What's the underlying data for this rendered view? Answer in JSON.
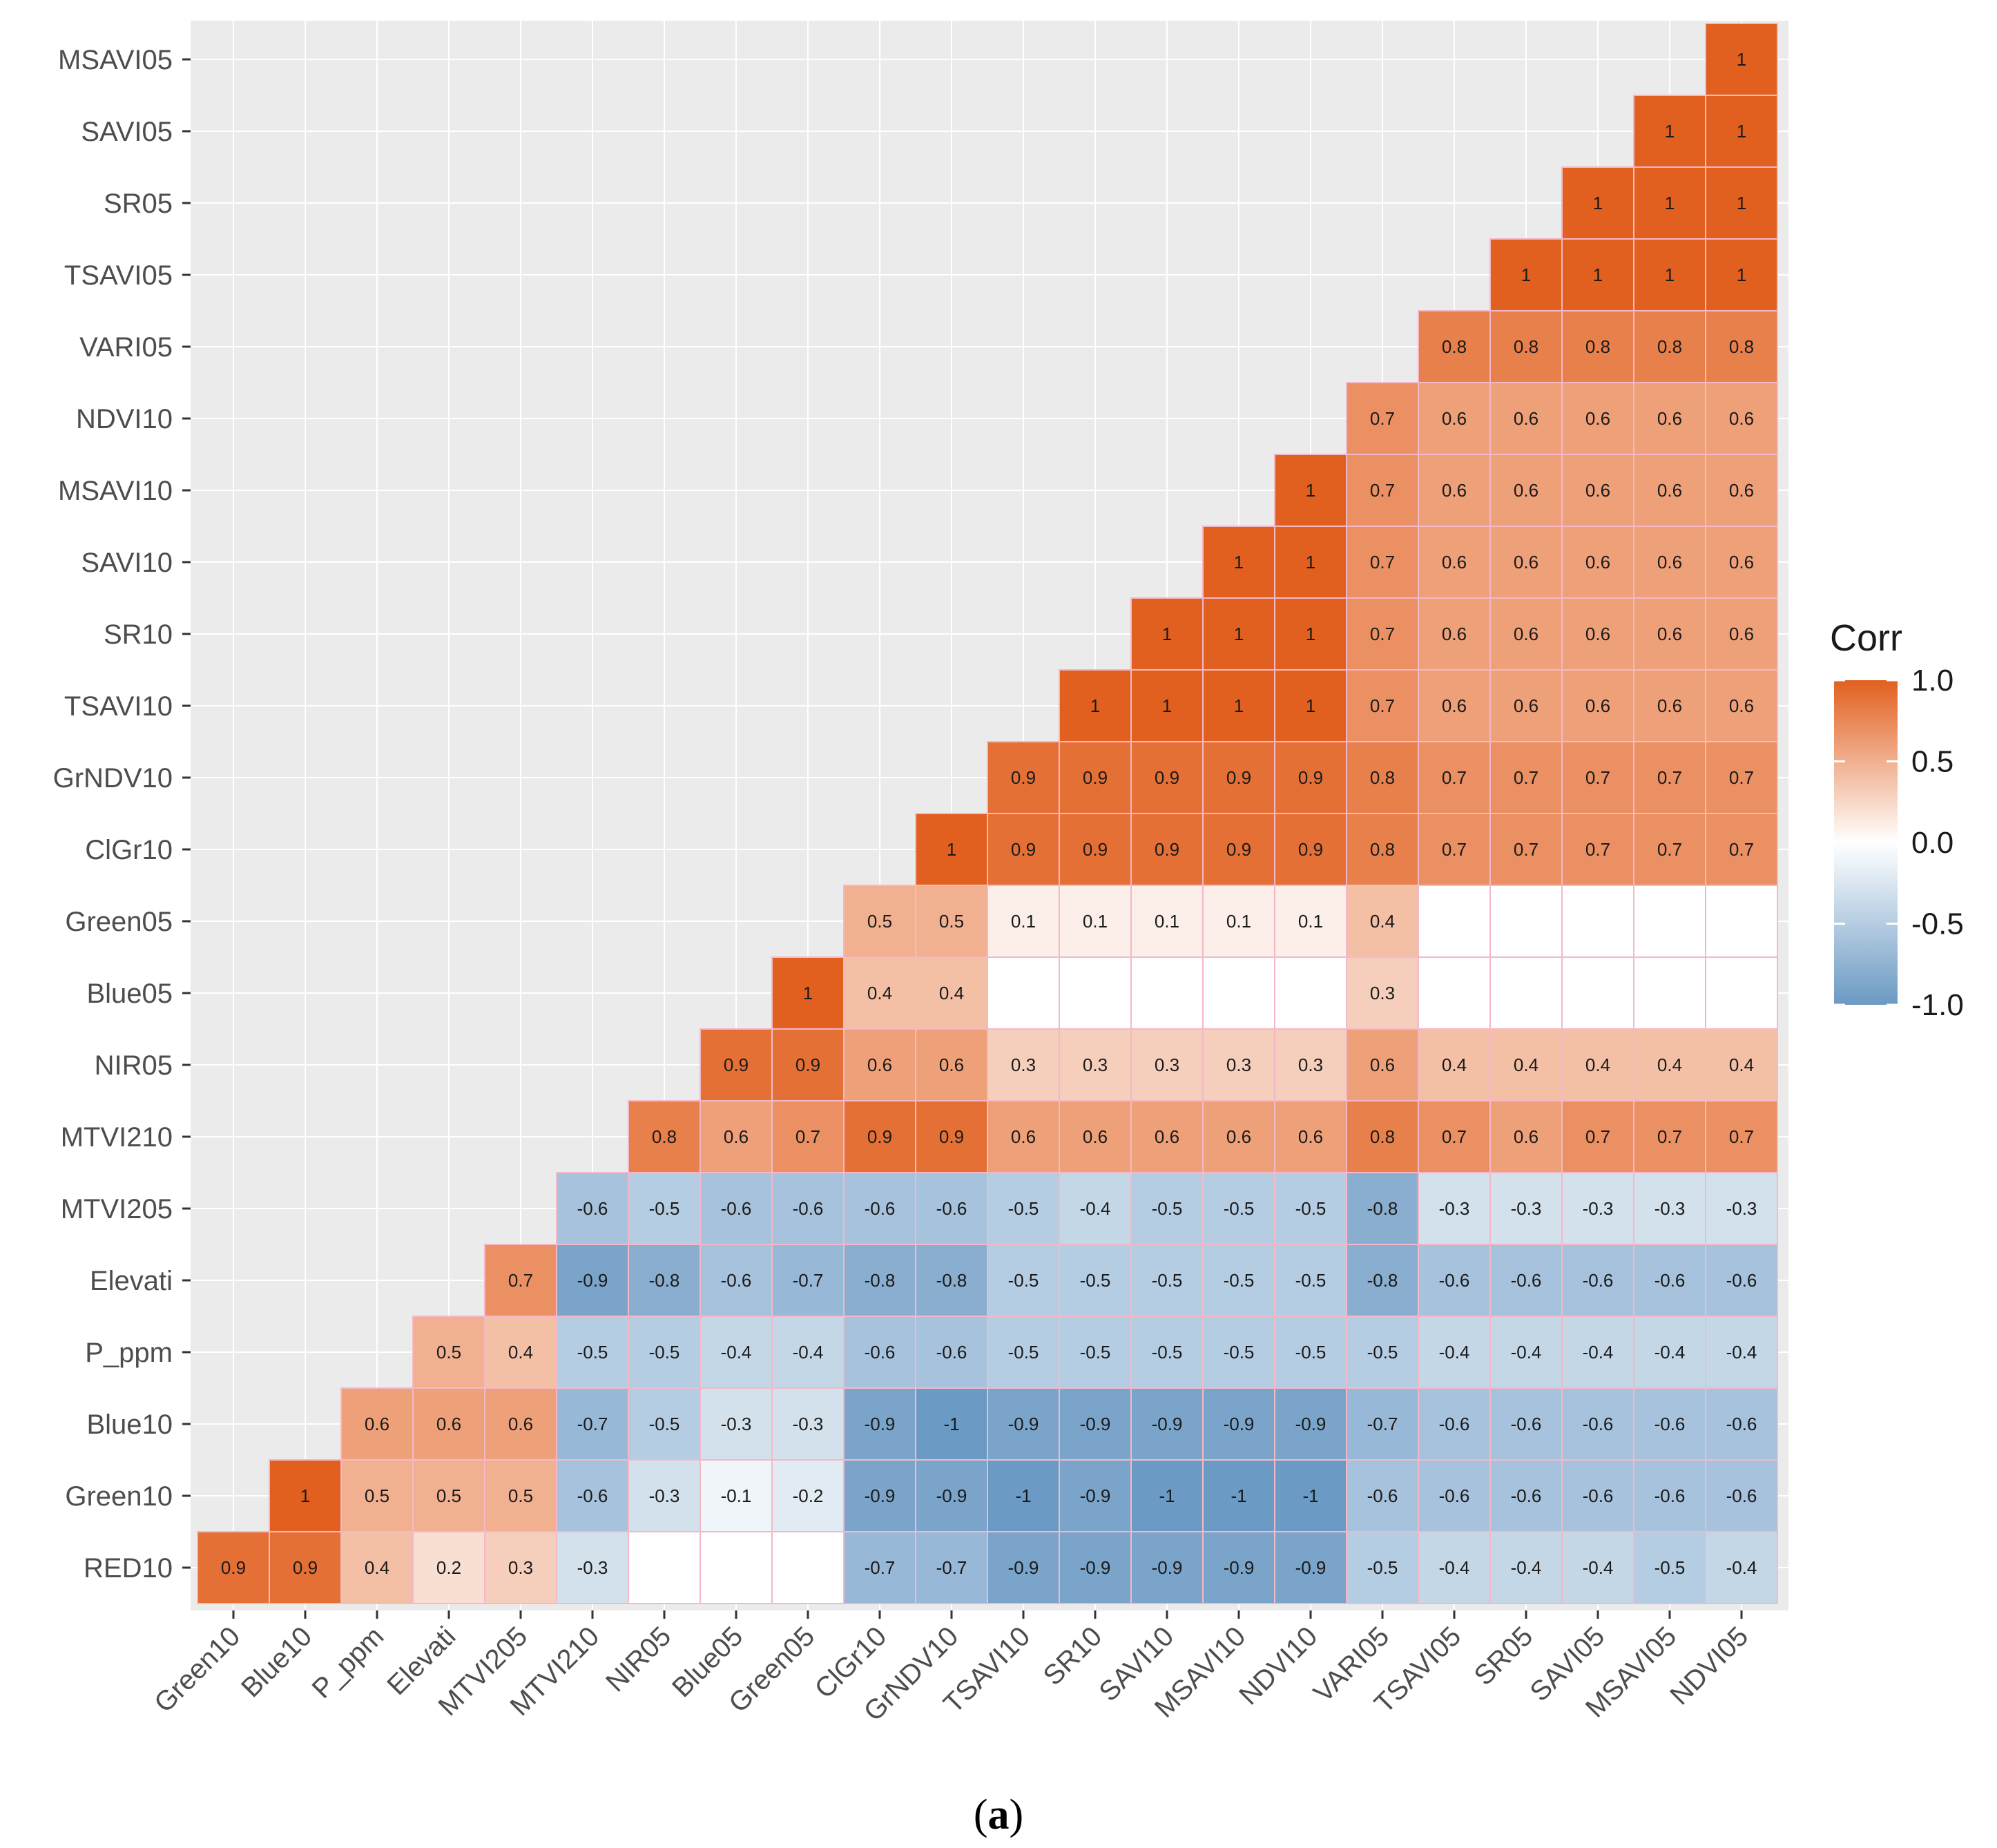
{
  "chart_data": {
    "type": "heatmap",
    "title": "",
    "caption": "(a)",
    "caption_inner": "a",
    "x_categories": [
      "Green10",
      "Blue10",
      "P_ppm",
      "Elevati",
      "MTVI205",
      "MTVI210",
      "NIR05",
      "Blue05",
      "Green05",
      "ClGr10",
      "GrNDV10",
      "TSAVI10",
      "SR10",
      "SAVI10",
      "MSAVI10",
      "NDVI10",
      "VARI05",
      "TSAVI05",
      "SR05",
      "SAVI05",
      "MSAVI05",
      "NDVI05"
    ],
    "y_categories": [
      "RED10",
      "Green10",
      "Blue10",
      "P_ppm",
      "Elevati",
      "MTVI205",
      "MTVI210",
      "NIR05",
      "Blue05",
      "Green05",
      "ClGr10",
      "GrNDV10",
      "TSAVI10",
      "SR10",
      "SAVI10",
      "MSAVI10",
      "NDVI10",
      "VARI05",
      "TSAVI05",
      "SR05",
      "SAVI05",
      "MSAVI05"
    ],
    "values": [
      [
        0.9,
        0.9,
        0.4,
        0.2,
        0.3,
        -0.3,
        0,
        0,
        0,
        -0.7,
        -0.7,
        -0.9,
        -0.9,
        -0.9,
        -0.9,
        -0.9,
        -0.5,
        -0.4,
        -0.4,
        -0.4,
        -0.5,
        -0.4
      ],
      [
        null,
        1,
        0.5,
        0.5,
        0.5,
        -0.6,
        -0.3,
        -0.1,
        -0.2,
        -0.9,
        -0.9,
        -1,
        -0.9,
        -1,
        -1,
        -1,
        -0.6,
        -0.6,
        -0.6,
        -0.6,
        -0.6,
        -0.6
      ],
      [
        null,
        null,
        0.6,
        0.6,
        0.6,
        -0.7,
        -0.5,
        -0.3,
        -0.3,
        -0.9,
        -1,
        -0.9,
        -0.9,
        -0.9,
        -0.9,
        -0.9,
        -0.7,
        -0.6,
        -0.6,
        -0.6,
        -0.6,
        -0.6
      ],
      [
        null,
        null,
        null,
        0.5,
        0.4,
        -0.5,
        -0.5,
        -0.4,
        -0.4,
        -0.6,
        -0.6,
        -0.5,
        -0.5,
        -0.5,
        -0.5,
        -0.5,
        -0.5,
        -0.4,
        -0.4,
        -0.4,
        -0.4,
        -0.4
      ],
      [
        null,
        null,
        null,
        null,
        0.7,
        -0.9,
        -0.8,
        -0.6,
        -0.7,
        -0.8,
        -0.8,
        -0.5,
        -0.5,
        -0.5,
        -0.5,
        -0.5,
        -0.8,
        -0.6,
        -0.6,
        -0.6,
        -0.6,
        -0.6
      ],
      [
        null,
        null,
        null,
        null,
        null,
        -0.6,
        -0.5,
        -0.6,
        -0.6,
        -0.6,
        -0.6,
        -0.5,
        -0.4,
        -0.5,
        -0.5,
        -0.5,
        -0.8,
        -0.3,
        -0.3,
        -0.3,
        -0.3,
        -0.3
      ],
      [
        null,
        null,
        null,
        null,
        null,
        null,
        0.8,
        0.6,
        0.7,
        0.9,
        0.9,
        0.6,
        0.6,
        0.6,
        0.6,
        0.6,
        0.8,
        0.7,
        0.6,
        0.7,
        0.7,
        0.7
      ],
      [
        null,
        null,
        null,
        null,
        null,
        null,
        null,
        0.9,
        0.9,
        0.6,
        0.6,
        0.3,
        0.3,
        0.3,
        0.3,
        0.3,
        0.6,
        0.4,
        0.4,
        0.4,
        0.4,
        0.4
      ],
      [
        null,
        null,
        null,
        null,
        null,
        null,
        null,
        null,
        1,
        0.4,
        0.4,
        0,
        0,
        0,
        0,
        0,
        0.3,
        0,
        0,
        0,
        0,
        0
      ],
      [
        null,
        null,
        null,
        null,
        null,
        null,
        null,
        null,
        null,
        0.5,
        0.5,
        0.1,
        0.1,
        0.1,
        0.1,
        0.1,
        0.4,
        0,
        0,
        0,
        0,
        0
      ],
      [
        null,
        null,
        null,
        null,
        null,
        null,
        null,
        null,
        null,
        null,
        1,
        0.9,
        0.9,
        0.9,
        0.9,
        0.9,
        0.8,
        0.7,
        0.7,
        0.7,
        0.7,
        0.7
      ],
      [
        null,
        null,
        null,
        null,
        null,
        null,
        null,
        null,
        null,
        null,
        null,
        0.9,
        0.9,
        0.9,
        0.9,
        0.9,
        0.8,
        0.7,
        0.7,
        0.7,
        0.7,
        0.7
      ],
      [
        null,
        null,
        null,
        null,
        null,
        null,
        null,
        null,
        null,
        null,
        null,
        null,
        1,
        1,
        1,
        1,
        0.7,
        0.6,
        0.6,
        0.6,
        0.6,
        0.6
      ],
      [
        null,
        null,
        null,
        null,
        null,
        null,
        null,
        null,
        null,
        null,
        null,
        null,
        null,
        1,
        1,
        1,
        0.7,
        0.6,
        0.6,
        0.6,
        0.6,
        0.6
      ],
      [
        null,
        null,
        null,
        null,
        null,
        null,
        null,
        null,
        null,
        null,
        null,
        null,
        null,
        null,
        1,
        1,
        0.7,
        0.6,
        0.6,
        0.6,
        0.6,
        0.6
      ],
      [
        null,
        null,
        null,
        null,
        null,
        null,
        null,
        null,
        null,
        null,
        null,
        null,
        null,
        null,
        null,
        1,
        0.7,
        0.6,
        0.6,
        0.6,
        0.6,
        0.6
      ],
      [
        null,
        null,
        null,
        null,
        null,
        null,
        null,
        null,
        null,
        null,
        null,
        null,
        null,
        null,
        null,
        null,
        0.7,
        0.6,
        0.6,
        0.6,
        0.6,
        0.6
      ],
      [
        null,
        null,
        null,
        null,
        null,
        null,
        null,
        null,
        null,
        null,
        null,
        null,
        null,
        null,
        null,
        null,
        null,
        0.8,
        0.8,
        0.8,
        0.8,
        0.8
      ],
      [
        null,
        null,
        null,
        null,
        null,
        null,
        null,
        null,
        null,
        null,
        null,
        null,
        null,
        null,
        null,
        null,
        null,
        null,
        1,
        1,
        1,
        1
      ],
      [
        null,
        null,
        null,
        null,
        null,
        null,
        null,
        null,
        null,
        null,
        null,
        null,
        null,
        null,
        null,
        null,
        null,
        null,
        null,
        1,
        1,
        1
      ],
      [
        null,
        null,
        null,
        null,
        null,
        null,
        null,
        null,
        null,
        null,
        null,
        null,
        null,
        null,
        null,
        null,
        null,
        null,
        null,
        null,
        1,
        1
      ],
      [
        null,
        null,
        null,
        null,
        null,
        null,
        null,
        null,
        null,
        null,
        null,
        null,
        null,
        null,
        null,
        null,
        null,
        null,
        null,
        null,
        null,
        1
      ]
    ],
    "blank_label_cells": [
      [
        0,
        6
      ],
      [
        0,
        7
      ],
      [
        0,
        8
      ],
      [
        8,
        11
      ],
      [
        8,
        12
      ],
      [
        8,
        13
      ],
      [
        8,
        14
      ],
      [
        8,
        15
      ],
      [
        8,
        17
      ],
      [
        8,
        18
      ],
      [
        8,
        19
      ],
      [
        8,
        20
      ],
      [
        8,
        21
      ],
      [
        9,
        17
      ],
      [
        9,
        18
      ],
      [
        9,
        19
      ],
      [
        9,
        20
      ],
      [
        9,
        21
      ]
    ],
    "color_scale": {
      "low": "#6b9ac4",
      "mid": "#ffffff",
      "high": "#e2601f",
      "limits": [
        -1,
        1
      ]
    },
    "legend": {
      "title": "Corr",
      "ticks": [
        "1.0",
        "0.5",
        "0.0",
        "-0.5",
        "-1.0"
      ],
      "tick_values": [
        1.0,
        0.5,
        0.0,
        -0.5,
        -1.0
      ],
      "position": "right"
    },
    "panel_background": "#ebebeb",
    "grid": true
  }
}
